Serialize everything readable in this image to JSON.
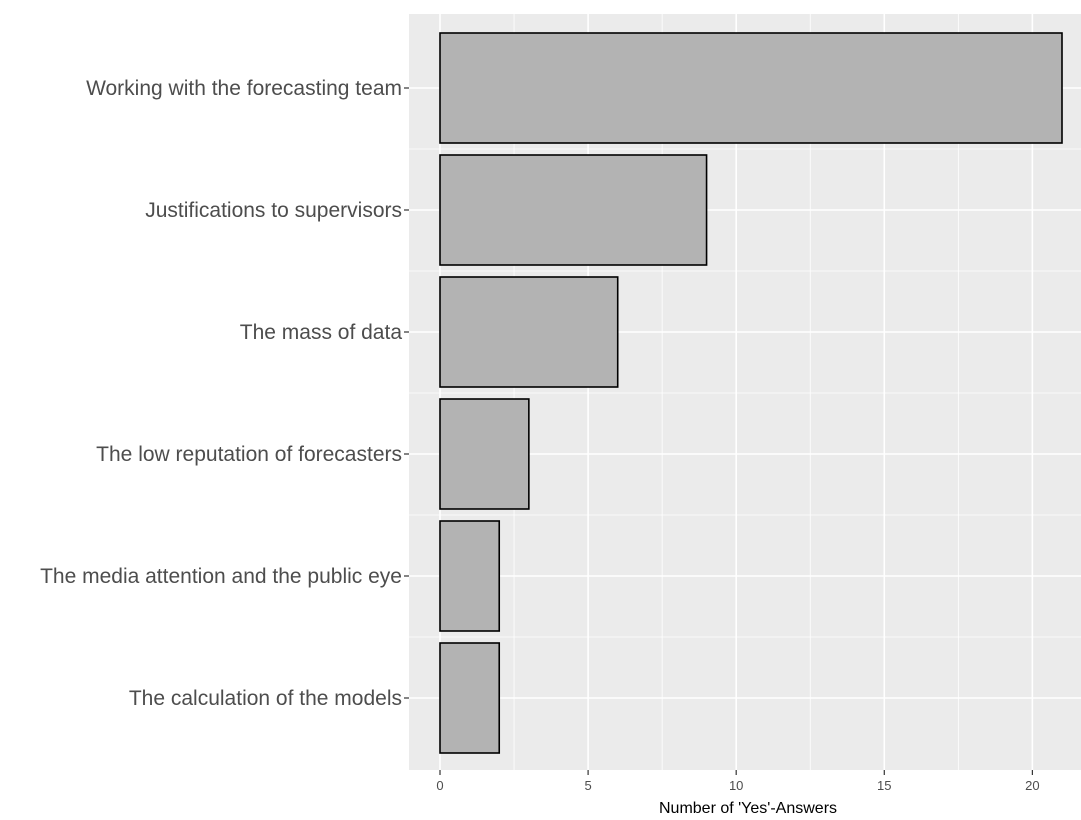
{
  "chart_data": {
    "type": "bar",
    "orientation": "horizontal",
    "categories": [
      "Working with the forecasting team",
      "Justifications to supervisors",
      "The mass of data",
      "The low reputation of forecasters",
      "The media attention and the public eye",
      "The calculation of the models"
    ],
    "values": [
      21,
      9,
      6,
      3,
      2,
      2
    ],
    "xlabel": "Number of 'Yes'-Answers",
    "ylabel": "",
    "xlim": [
      0,
      21
    ],
    "x_ticks": [
      0,
      5,
      10,
      15,
      20
    ],
    "x_tick_labels": [
      "0",
      "5",
      "10",
      "15",
      "20"
    ],
    "grid": true
  },
  "colors": {
    "panel_background": "#ebebeb",
    "grid": "#ffffff",
    "bar_fill": "#b3b3b3",
    "bar_outline": "#000000"
  }
}
